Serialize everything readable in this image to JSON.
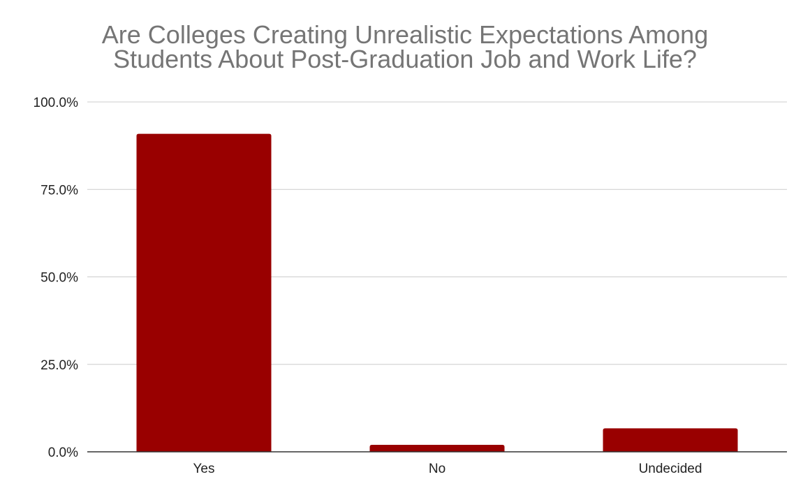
{
  "chart_data": {
    "type": "bar",
    "title_lines": [
      "Are Colleges Creating Unrealistic Expectations Among",
      "Students About Post-Graduation Job and Work Life?"
    ],
    "categories": [
      "Yes",
      "No",
      "Undecided"
    ],
    "values": [
      90.9,
      2.0,
      6.7
    ],
    "value_format": "percent",
    "ylim": [
      0,
      100
    ],
    "yticks": [
      0,
      25,
      50,
      75,
      100
    ],
    "ytick_labels": [
      "0.0%",
      "25.0%",
      "50.0%",
      "75.0%",
      "100.0%"
    ],
    "xlabel": "",
    "ylabel": "",
    "grid": true,
    "legend": "none",
    "bar_color": "#990000",
    "gridline_color": "#cccccc",
    "baseline_color": "#333333",
    "title_color": "#757575"
  }
}
